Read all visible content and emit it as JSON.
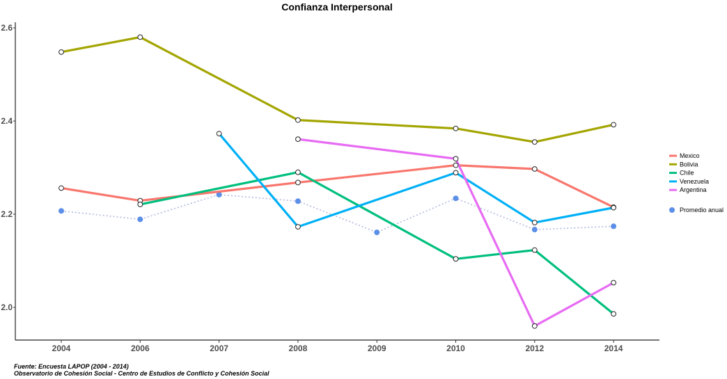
{
  "chart_data": {
    "type": "line",
    "title": "Confianza Interpersonal",
    "xlabel": "",
    "ylabel": "",
    "categories": [
      "2004",
      "2006",
      "2007",
      "2008",
      "2009",
      "2010",
      "2012",
      "2014"
    ],
    "y_ticks": [
      "2.0",
      "2.2",
      "2.4",
      "2.6"
    ],
    "ylim": [
      1.93,
      2.62
    ],
    "grid": false,
    "legend_position": "right",
    "series": [
      {
        "name": "Mexico",
        "color": "#F8766D",
        "values": [
          2.256,
          2.229,
          null,
          2.268,
          null,
          2.305,
          2.297,
          2.215
        ]
      },
      {
        "name": "Bolivia",
        "color": "#A3A500",
        "values": [
          2.548,
          2.58,
          null,
          2.402,
          null,
          2.384,
          2.355,
          2.392
        ]
      },
      {
        "name": "Chile",
        "color": "#00BF7D",
        "values": [
          null,
          2.221,
          null,
          2.29,
          null,
          2.104,
          2.123,
          1.986
        ]
      },
      {
        "name": "Venezuela",
        "color": "#00B0F6",
        "values": [
          null,
          null,
          2.373,
          2.173,
          null,
          2.289,
          2.182,
          2.214
        ]
      },
      {
        "name": "Argentina",
        "color": "#E76BF3",
        "values": [
          null,
          null,
          null,
          2.361,
          null,
          2.319,
          1.96,
          2.053
        ]
      }
    ],
    "average": {
      "name": "Promedio anual",
      "color": "#5B8FE8",
      "values": [
        2.207,
        2.189,
        2.242,
        2.228,
        2.161,
        2.234,
        2.167,
        2.174
      ]
    }
  },
  "captions": {
    "source": "Fuente: Encuesta LAPOP (2004 - 2014)",
    "observatory": "Observatorio de Cohesión Social - Centro de Estudios de Conflicto y Cohesión Social"
  }
}
